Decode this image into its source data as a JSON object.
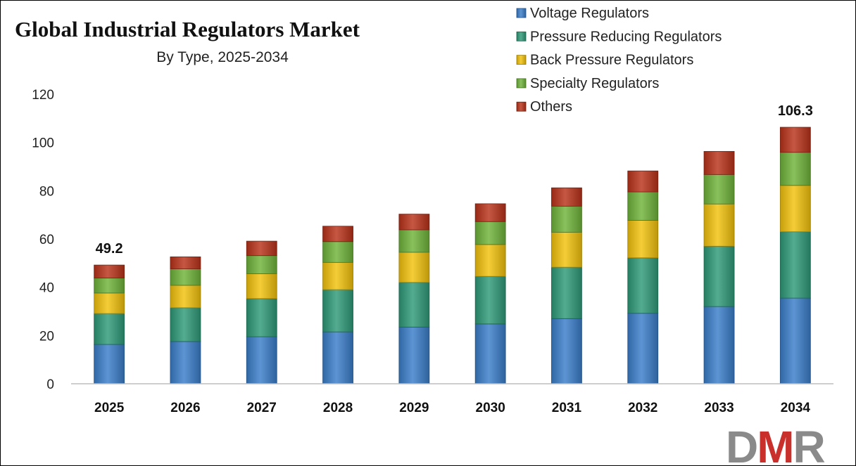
{
  "chart_data": {
    "type": "bar",
    "stacked": true,
    "title": "Global Industrial Regulators Market",
    "subtitle": "By Type, 2025-2034",
    "categories": [
      "2025",
      "2026",
      "2027",
      "2028",
      "2029",
      "2030",
      "2031",
      "2032",
      "2033",
      "2034"
    ],
    "series": [
      {
        "name": "Voltage Regulators",
        "color": "#3a7dc9",
        "values": [
          16.3,
          17.5,
          19.5,
          21.5,
          23.5,
          24.8,
          27.0,
          29.2,
          32.0,
          35.5
        ]
      },
      {
        "name": "Pressure Reducing Regulators",
        "color": "#2e9a78",
        "values": [
          12.8,
          14.0,
          15.8,
          17.5,
          18.5,
          19.7,
          21.3,
          23.0,
          25.0,
          27.5
        ]
      },
      {
        "name": "Back Pressure Regulators",
        "color": "#f2c20c",
        "values": [
          8.5,
          9.3,
          10.3,
          11.3,
          12.5,
          13.2,
          14.5,
          15.5,
          17.5,
          19.2
        ]
      },
      {
        "name": "Specialty Regulators",
        "color": "#6fb33a",
        "values": [
          6.2,
          6.8,
          7.5,
          8.6,
          9.3,
          9.5,
          10.8,
          11.8,
          12.2,
          13.7
        ]
      },
      {
        "name": "Others",
        "color": "#b8321a",
        "values": [
          5.4,
          5.0,
          6.0,
          6.4,
          6.5,
          7.4,
          7.6,
          8.7,
          9.6,
          10.4
        ]
      }
    ],
    "data_labels": [
      {
        "category": "2025",
        "text": "49.2"
      },
      {
        "category": "2034",
        "text": "106.3"
      }
    ],
    "ylim": [
      0,
      120
    ],
    "yticks": [
      "0",
      "20",
      "40",
      "60",
      "80",
      "100",
      "120"
    ],
    "xlabel": "",
    "ylabel": "",
    "grid": false,
    "legend_position": "top-right"
  },
  "logo": {
    "text": "DMR",
    "color_d": "#8a8a8a",
    "color_m": "#c9302c",
    "color_r": "#8a8a8a"
  }
}
